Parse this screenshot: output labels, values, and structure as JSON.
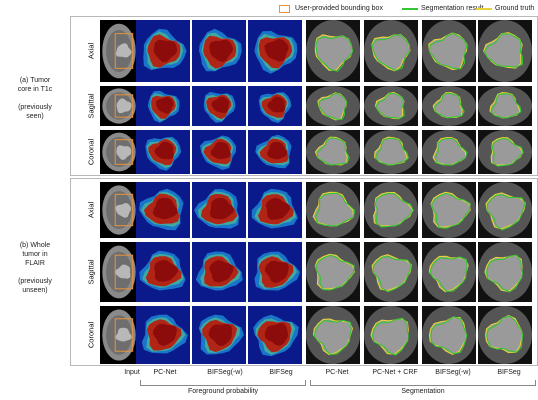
{
  "legend": {
    "bbox_label": "User-provided bounding box",
    "seg_label": "Segmentation result",
    "gt_label": "Ground truth",
    "colors": {
      "bbox": "#e8933a",
      "seg": "#35c435",
      "gt": "#e8d23a"
    }
  },
  "groups": [
    {
      "label_lines": [
        "(a) Tumor",
        "core in T1c",
        "",
        "(previously",
        "seen)"
      ]
    },
    {
      "label_lines": [
        "(b) Whole",
        "tumor in",
        "FLAIR",
        "",
        "(previously",
        "unseen)"
      ]
    }
  ],
  "views": [
    "Axial",
    "Sagittal",
    "Coronal"
  ],
  "columns": [
    "Input",
    "PC-Net",
    "BIFSeg(-w)",
    "BIFSeg",
    "PC-Net",
    "PC-Net  + CRF",
    "BIFSeg(-w)",
    "BIFSeg"
  ],
  "column_groups": [
    "Foreground probability",
    "Segmentation"
  ]
}
